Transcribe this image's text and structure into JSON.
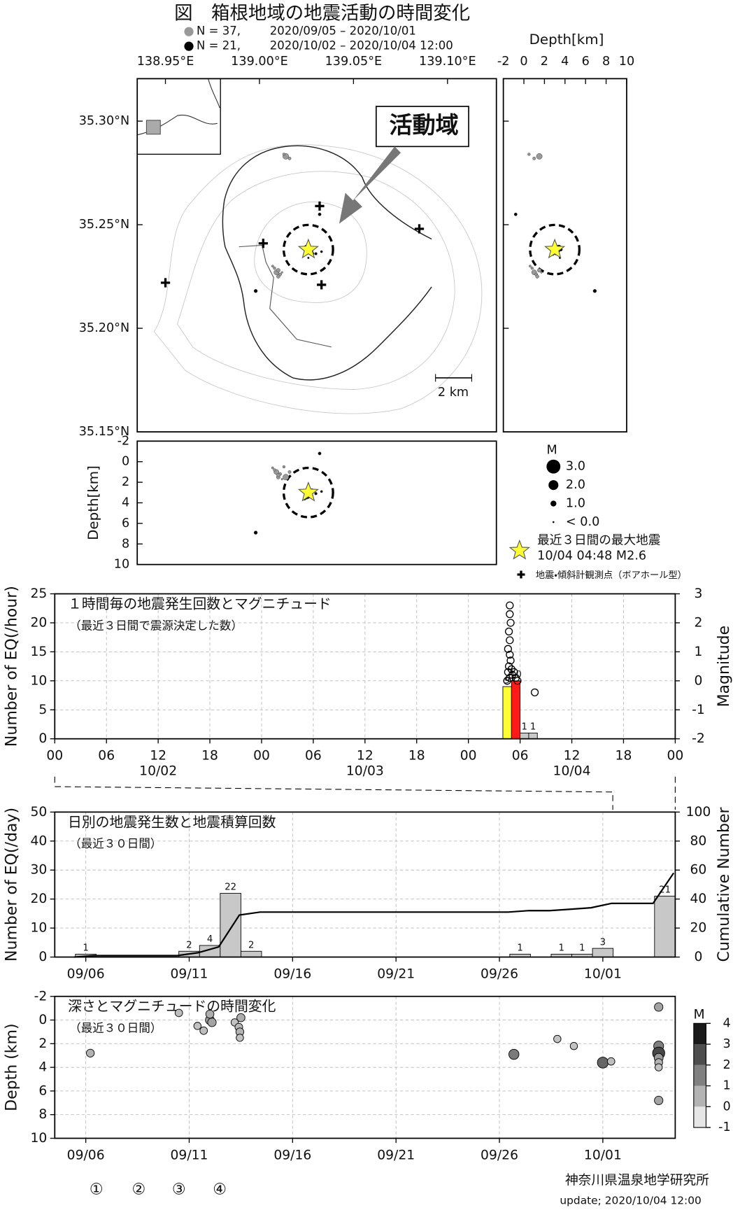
{
  "title": "図　箱根地域の地震活動の時間変化",
  "footer": {
    "markers": [
      "①",
      "②",
      "③",
      "④"
    ],
    "org": "神奈川県温泉地学研究所",
    "update": "update; 2020/10/04 12:00"
  },
  "chart_data": [
    {
      "type": "map",
      "xlim": [
        138.935,
        139.126
      ],
      "ylim": [
        35.15,
        35.3205
      ],
      "xticks": [
        {
          "value": 138.95,
          "label": "138.95°E"
        },
        {
          "value": 139.0,
          "label": "139.00°E"
        },
        {
          "value": 139.05,
          "label": "139.05°E"
        },
        {
          "value": 139.1,
          "label": "139.10°E"
        }
      ],
      "yticks": [
        {
          "value": 35.15,
          "label": "35.15°N"
        },
        {
          "value": 35.2,
          "label": "35.20°N"
        },
        {
          "value": 35.25,
          "label": "35.25°N"
        },
        {
          "value": 35.3,
          "label": "35.30°N"
        }
      ],
      "depth_label": "Depth[km]",
      "depth_lim": [
        -2,
        10
      ],
      "depth_ticks": [
        -2,
        0,
        2,
        4,
        6,
        8,
        10
      ],
      "series": [
        {
          "name": "2020/09/05 – 2020/10/01",
          "count_label": "N = 37,",
          "color": "#999999",
          "x": [
            139.009,
            139.01,
            139.011,
            139.008,
            139.012,
            139.01,
            139.014,
            139.016,
            139.013,
            139.007,
            139.026
          ],
          "y": [
            35.227,
            35.228,
            35.226,
            35.229,
            35.227,
            35.225,
            35.283,
            35.282,
            35.284,
            35.23,
            35.238
          ],
          "depth": [
            1.0,
            1.5,
            1.2,
            0.8,
            1.7,
            1.3,
            1.5,
            1.0,
            0.5,
            0.6,
            2.8
          ],
          "magnitude": [
            0.8,
            0.5,
            0.3,
            0.2,
            0.0,
            0.4,
            1.0,
            0.3,
            0.2,
            0.1,
            0.3
          ]
        },
        {
          "name": "2020/10/02 – 2020/10/04 12:00",
          "count_label": "N = 21,",
          "color": "#000000",
          "x": [
            139.026,
            139.027,
            139.025,
            139.028,
            139.024,
            139.03,
            139.033,
            139.026,
            139.032,
            138.998
          ],
          "y": [
            35.238,
            35.237,
            35.239,
            35.236,
            35.238,
            35.236,
            35.237,
            35.234,
            35.255,
            35.218
          ],
          "depth": [
            3.2,
            3.0,
            3.4,
            2.8,
            3.6,
            3.1,
            2.9,
            3.5,
            -0.8,
            6.9
          ],
          "magnitude": [
            1.4,
            1.0,
            0.8,
            0.5,
            0.3,
            0.2,
            0.1,
            0.0,
            0.3,
            0.4
          ]
        }
      ],
      "star": {
        "x": 139.026,
        "y": 35.238,
        "depth": 3.0,
        "color": "#ffff33",
        "label": [
          "最近３日間の最大地震",
          "10/04 04:48 M2.6"
        ]
      },
      "stations": {
        "x": [
          139.032,
          139.002,
          138.95,
          139.085,
          139.033
        ],
        "y": [
          35.259,
          35.241,
          35.222,
          35.248,
          35.221
        ],
        "label": "地震・傾斜計観測点（ボアホール型）"
      },
      "magnitude_legend": {
        "title": "M",
        "values": [
          3,
          2,
          1,
          0
        ],
        "value_labels": [
          "3.0",
          "2.0",
          "1.0",
          "< 0.0"
        ]
      },
      "annotation": "活動域",
      "scale_bar": "2 km"
    },
    {
      "type": "bar",
      "title": "１時間毎の地震発生回数とマグニチュード",
      "subtitle": "（最近３日間で震源決定した数）",
      "ylabel": "Number of EQ(/hour)",
      "y2label": "Magnitude",
      "xlim": [
        0,
        72
      ],
      "xticks": [
        {
          "value": 0,
          "label": "00"
        },
        {
          "value": 6,
          "label": "06"
        },
        {
          "value": 12,
          "label": "12"
        },
        {
          "value": 18,
          "label": "18"
        },
        {
          "value": 24,
          "label": "00"
        },
        {
          "value": 30,
          "label": "06"
        },
        {
          "value": 36,
          "label": "12"
        },
        {
          "value": 42,
          "label": "18"
        },
        {
          "value": 48,
          "label": "00"
        },
        {
          "value": 54,
          "label": "06"
        },
        {
          "value": 60,
          "label": "12"
        },
        {
          "value": 66,
          "label": "18"
        },
        {
          "value": 72,
          "label": "00"
        }
      ],
      "date_labels": [
        {
          "value": 12,
          "label": "10/02"
        },
        {
          "value": 36,
          "label": "10/03"
        },
        {
          "value": 60,
          "label": "10/04"
        }
      ],
      "ylim": [
        0,
        25
      ],
      "yticks": [
        0,
        5,
        10,
        15,
        20,
        25
      ],
      "y2lim": [
        -2,
        3
      ],
      "y2ticks": [
        -2,
        -1,
        0,
        1,
        2,
        3
      ],
      "grid": true,
      "series": [
        {
          "type": "bar",
          "x": [
            52,
            53,
            54,
            55
          ],
          "values": [
            9,
            10,
            1,
            1
          ],
          "colors": [
            "#ffff33",
            "#ff1a1a",
            "#c8c8c8",
            "#c8c8c8"
          ]
        },
        {
          "type": "scatter",
          "axis": "y2",
          "x": [
            52.8,
            52.8,
            52.9,
            52.7,
            52.8,
            52.6,
            52.8,
            52.9,
            52.7,
            53.0,
            52.6,
            53.1,
            52.8,
            53.3,
            53.5,
            53.7,
            52.5,
            55.7
          ],
          "values": [
            2.6,
            2.3,
            2.0,
            1.7,
            1.4,
            1.1,
            0.9,
            0.7,
            0.5,
            0.4,
            0.3,
            0.2,
            0.1,
            0.3,
            0.1,
            0.0,
            0.0,
            -0.4
          ]
        }
      ]
    },
    {
      "type": "bar",
      "title": "日別の地震発生数と地震積算回数",
      "subtitle": "（最近３０日間）",
      "ylabel": "Number of EQ(/day)",
      "y2label": "Cumulative Number",
      "categories": [
        null,
        "09/06",
        null,
        null,
        null,
        null,
        "09/11",
        null,
        null,
        null,
        null,
        "09/16",
        null,
        null,
        null,
        null,
        "09/21",
        null,
        null,
        null,
        null,
        "09/26",
        null,
        null,
        null,
        null,
        "10/01",
        null,
        null,
        null
      ],
      "values": [
        0,
        1,
        0,
        0,
        0,
        0,
        2,
        4,
        22,
        2,
        0,
        0,
        0,
        0,
        0,
        0,
        0,
        0,
        0,
        0,
        0,
        0,
        1,
        0,
        1,
        1,
        3,
        0,
        0,
        21
      ],
      "color": "#c8c8c8",
      "cumulative": {
        "axis": "y2",
        "values": [
          0,
          1,
          1,
          1,
          1,
          1,
          3,
          7,
          29,
          31,
          31,
          31,
          31,
          31,
          31,
          31,
          31,
          31,
          31,
          31,
          31,
          31,
          32,
          32,
          33,
          34,
          37,
          37,
          37,
          58
        ]
      },
      "ylim": [
        0,
        50
      ],
      "yticks": [
        0,
        10,
        20,
        30,
        40,
        50
      ],
      "y2lim": [
        0,
        100
      ],
      "y2ticks": [
        0,
        20,
        40,
        60,
        80,
        100
      ],
      "grid": true
    },
    {
      "type": "scatter",
      "title": "深さとマグニチュードの時間変化",
      "subtitle": "（最近３０日間）",
      "ylabel": "Depth (km)",
      "xlim": [
        0,
        30
      ],
      "xticks": [
        {
          "value": 1.5,
          "label": "09/06"
        },
        {
          "value": 6.5,
          "label": "09/11"
        },
        {
          "value": 11.5,
          "label": "09/16"
        },
        {
          "value": 16.5,
          "label": "09/21"
        },
        {
          "value": 21.5,
          "label": "09/26"
        },
        {
          "value": 26.5,
          "label": "10/01"
        }
      ],
      "ylim": [
        -2,
        10
      ],
      "y_inverted": true,
      "yticks": [
        -2,
        0,
        2,
        4,
        6,
        8,
        10
      ],
      "grid": true,
      "x": [
        1.72,
        6.0,
        6.9,
        7.2,
        7.5,
        7.5,
        7.6,
        8.7,
        8.9,
        8.95,
        8.95,
        9.0,
        22.2,
        24.3,
        25.1,
        26.5,
        26.9,
        29.2,
        29.2,
        29.2,
        29.2,
        29.2,
        29.2,
        29.2
      ],
      "values": [
        2.8,
        -0.6,
        0.5,
        0.9,
        0.0,
        -0.5,
        0.2,
        0.2,
        0.6,
        1.0,
        1.5,
        -0.2,
        2.9,
        1.6,
        2.2,
        3.6,
        3.5,
        -1.1,
        2.2,
        2.8,
        3.2,
        3.6,
        4.0,
        6.8
      ],
      "magnitude": [
        0.5,
        0.3,
        0.2,
        0.3,
        1.0,
        0.6,
        0.8,
        0.2,
        0.4,
        0.5,
        0.2,
        0.6,
        1.6,
        0.2,
        0.2,
        2.0,
        0.3,
        0.8,
        1.5,
        2.6,
        1.0,
        0.5,
        0.2,
        0.8
      ],
      "colorbar": {
        "title": "M",
        "lim": [
          -1,
          4
        ],
        "ticks": [
          -1,
          0,
          1,
          2,
          3,
          4
        ]
      }
    }
  ]
}
